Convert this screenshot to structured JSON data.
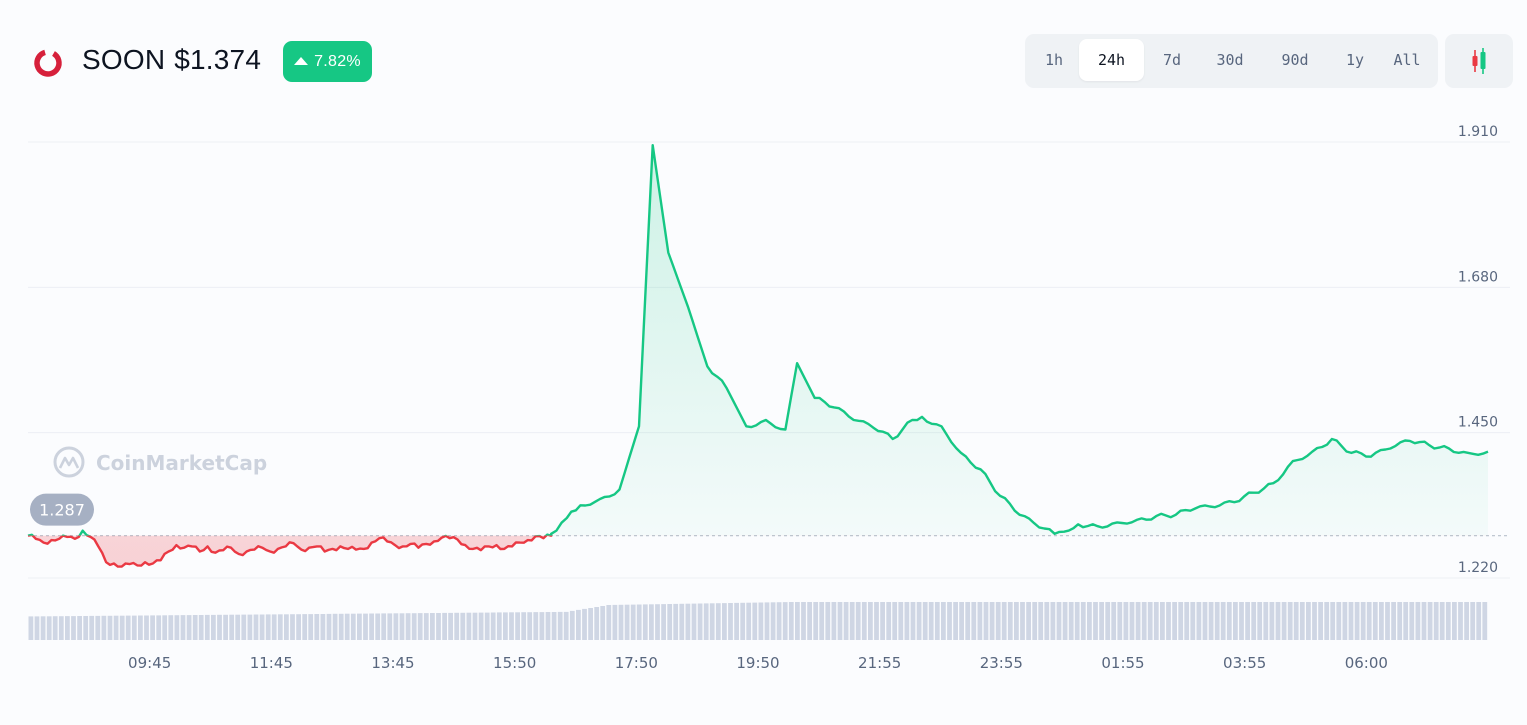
{
  "header": {
    "symbol": "SOON",
    "price": "$1.374",
    "change": "7.82%",
    "change_direction": "up",
    "logo_icon": "soon-ring-icon"
  },
  "timeframes": {
    "items": [
      "1h",
      "24h",
      "7d",
      "30d",
      "90d",
      "1y",
      "All"
    ],
    "active": "24h"
  },
  "candle_toggle_icon": "candlestick-icon",
  "watermark": "CoinMarketCap",
  "colors": {
    "up": "#16c784",
    "down": "#ea3943",
    "badge_bg": "#16c784",
    "grid": "#eceff4",
    "volume": "#cfd6e4",
    "axis_text": "#58667e"
  },
  "chart_data": {
    "type": "area",
    "title": "",
    "baseline": 1.287,
    "baseline_label": "1.287",
    "ylim": [
      1.15,
      1.915
    ],
    "y_ticks": [
      1.91,
      1.68,
      1.45,
      1.22
    ],
    "y_tick_labels": [
      "1.910",
      "1.680",
      "1.450",
      "1.220"
    ],
    "x_tick_labels": [
      "09:45",
      "11:45",
      "13:45",
      "15:50",
      "17:50",
      "19:50",
      "21:55",
      "23:55",
      "01:55",
      "03:55",
      "06:00"
    ],
    "grid": true,
    "x_count": 240,
    "x_tick_positions": [
      20,
      40,
      60,
      80,
      100,
      120,
      140,
      160,
      180,
      200,
      220
    ],
    "price_anchors": [
      [
        0,
        1.287
      ],
      [
        2,
        1.282
      ],
      [
        4,
        1.276
      ],
      [
        6,
        1.28
      ],
      [
        8,
        1.282
      ],
      [
        10,
        1.285
      ],
      [
        12,
        1.282
      ],
      [
        14,
        1.295
      ],
      [
        16,
        1.285
      ],
      [
        18,
        1.27
      ],
      [
        20,
        1.245
      ],
      [
        22,
        1.243
      ],
      [
        24,
        1.238
      ],
      [
        26,
        1.242
      ],
      [
        28,
        1.24
      ],
      [
        30,
        1.245
      ],
      [
        32,
        1.243
      ],
      [
        34,
        1.248
      ],
      [
        36,
        1.262
      ],
      [
        38,
        1.272
      ],
      [
        40,
        1.268
      ],
      [
        42,
        1.27
      ],
      [
        44,
        1.262
      ],
      [
        46,
        1.27
      ],
      [
        48,
        1.26
      ],
      [
        50,
        1.264
      ],
      [
        52,
        1.268
      ],
      [
        54,
        1.258
      ],
      [
        56,
        1.262
      ],
      [
        58,
        1.265
      ],
      [
        60,
        1.268
      ],
      [
        62,
        1.262
      ],
      [
        64,
        1.266
      ],
      [
        66,
        1.27
      ],
      [
        68,
        1.275
      ],
      [
        70,
        1.265
      ],
      [
        72,
        1.268
      ],
      [
        74,
        1.27
      ],
      [
        76,
        1.262
      ],
      [
        78,
        1.266
      ],
      [
        80,
        1.27
      ],
      [
        82,
        1.266
      ],
      [
        84,
        1.265
      ],
      [
        86,
        1.266
      ],
      [
        88,
        1.276
      ],
      [
        90,
        1.283
      ],
      [
        92,
        1.278
      ],
      [
        94,
        1.272
      ],
      [
        96,
        1.27
      ],
      [
        98,
        1.274
      ],
      [
        100,
        1.268
      ],
      [
        102,
        1.274
      ],
      [
        104,
        1.278
      ],
      [
        106,
        1.284
      ],
      [
        108,
        1.283
      ],
      [
        110,
        1.281
      ],
      [
        112,
        1.272
      ],
      [
        114,
        1.266
      ],
      [
        116,
        1.264
      ],
      [
        118,
        1.27
      ],
      [
        120,
        1.272
      ],
      [
        122,
        1.266
      ],
      [
        124,
        1.27
      ],
      [
        126,
        1.276
      ],
      [
        128,
        1.28
      ],
      [
        130,
        1.286
      ],
      [
        132,
        1.283
      ],
      [
        134,
        1.287
      ],
      [
        86,
        1.29
      ],
      [
        86.8,
        1.315
      ],
      [
        87.5,
        1.335
      ],
      [
        88.5,
        1.345
      ],
      [
        89.5,
        1.36
      ],
      [
        90.5,
        1.46
      ],
      [
        91.2,
        1.905
      ],
      [
        92,
        1.735
      ],
      [
        93,
        1.65
      ],
      [
        94,
        1.555
      ],
      [
        95,
        1.52
      ],
      [
        96,
        1.46
      ],
      [
        97,
        1.47
      ],
      [
        98,
        1.455
      ],
      [
        98.6,
        1.56
      ],
      [
        99.5,
        1.505
      ],
      [
        100.5,
        1.49
      ],
      [
        101.5,
        1.47
      ],
      [
        102.5,
        1.458
      ],
      [
        103.5,
        1.44
      ],
      [
        104.5,
        1.47
      ],
      [
        105,
        1.475
      ],
      [
        106,
        1.46
      ],
      [
        107,
        1.418
      ],
      [
        108,
        1.392
      ],
      [
        109,
        1.35
      ],
      [
        110,
        1.32
      ],
      [
        111,
        1.3
      ],
      [
        111.8,
        1.29
      ],
      [
        113,
        1.305
      ],
      [
        114,
        1.302
      ],
      [
        115,
        1.308
      ],
      [
        116,
        1.312
      ],
      [
        117,
        1.318
      ],
      [
        118,
        1.32
      ],
      [
        119,
        1.33
      ],
      [
        120,
        1.332
      ],
      [
        121,
        1.34
      ],
      [
        122,
        1.355
      ],
      [
        123,
        1.37
      ],
      [
        124,
        1.405
      ],
      [
        125,
        1.42
      ],
      [
        126,
        1.44
      ],
      [
        127,
        1.418
      ],
      [
        128,
        1.412
      ],
      [
        129,
        1.425
      ],
      [
        130,
        1.437
      ],
      [
        131,
        1.43
      ],
      [
        132,
        1.425
      ],
      [
        133,
        1.418
      ],
      [
        134,
        1.42
      ]
    ],
    "series_note_dummy": ""
  }
}
